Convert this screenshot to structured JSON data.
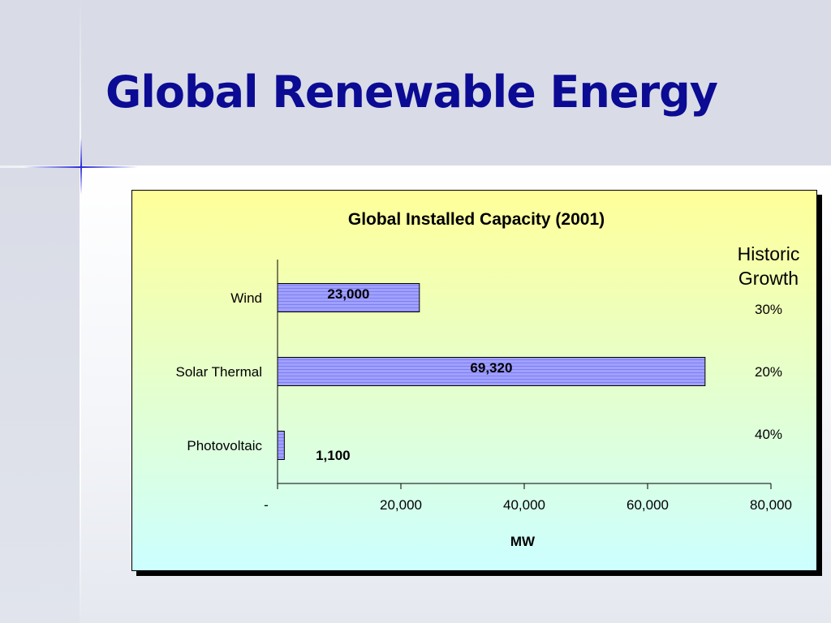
{
  "slide": {
    "title": "Global Renewable Energy",
    "title_color": "#0b0b94",
    "background_color": "#d9dce6"
  },
  "chart_data": {
    "type": "bar",
    "orientation": "horizontal",
    "title": "Global Installed Capacity (2001)",
    "xlabel": "MW",
    "ylabel": "",
    "categories": [
      "Wind",
      "Solar Thermal",
      "Photovoltaic"
    ],
    "values": [
      23000,
      69320,
      1100
    ],
    "data_labels": [
      "23,000",
      "69,320",
      "1,100"
    ],
    "xlim": [
      0,
      80000
    ],
    "x_ticks": [
      0,
      20000,
      40000,
      60000,
      80000
    ],
    "x_tick_labels": [
      "-",
      "20,000",
      "40,000",
      "60,000",
      "80,000"
    ],
    "grid": false,
    "bar_color": "#9999ff",
    "panel_gradient": [
      "#ffff99",
      "#ccffff"
    ],
    "annotation": {
      "heading_line1": "Historic",
      "heading_line2": "Growth",
      "values": [
        "30%",
        "20%",
        "40%"
      ]
    }
  }
}
